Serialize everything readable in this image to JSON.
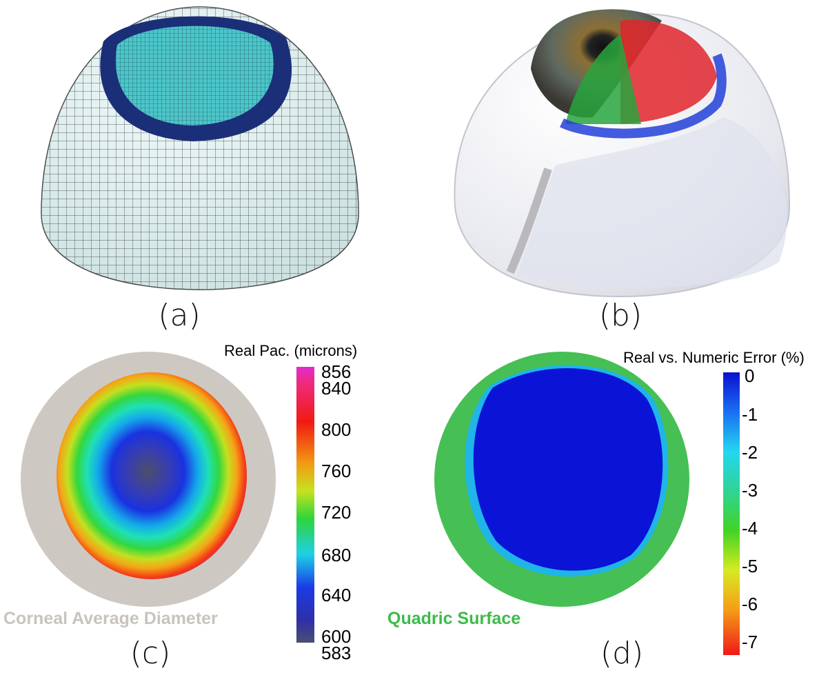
{
  "panels": {
    "a": {
      "label": "(a)"
    },
    "b": {
      "label": "(b)"
    },
    "c": {
      "label": "(c)",
      "colorbar_title": "Real Pac. (microns)",
      "colorbar_ticks": [
        "856",
        "840",
        "800",
        "760",
        "720",
        "680",
        "640",
        "600",
        "583"
      ],
      "caption": "Corneal Average Diameter",
      "caption_color": "#c8c4bd"
    },
    "d": {
      "label": "(d)",
      "colorbar_title": "Real vs. Numeric Error (%)",
      "colorbar_ticks": [
        "0",
        "-1",
        "-2",
        "-3",
        "-4",
        "-5",
        "-6",
        "-7"
      ],
      "caption": "Quadric Surface",
      "caption_color": "#3dbb4b"
    }
  },
  "colors": {
    "mesh_fill": "#e8f7f7",
    "mesh_line": "#1a1a1a",
    "cornea_fill": "#4ec9cc",
    "limbus_ring": "#1d2f7a",
    "sclera": "#ebebef",
    "fiber_red": "#e0242c",
    "fiber_green": "#27a43c",
    "fiber_blue": "#2340d8",
    "error_fill": "#0a13d6",
    "quadric_ring": "#46bf55"
  }
}
